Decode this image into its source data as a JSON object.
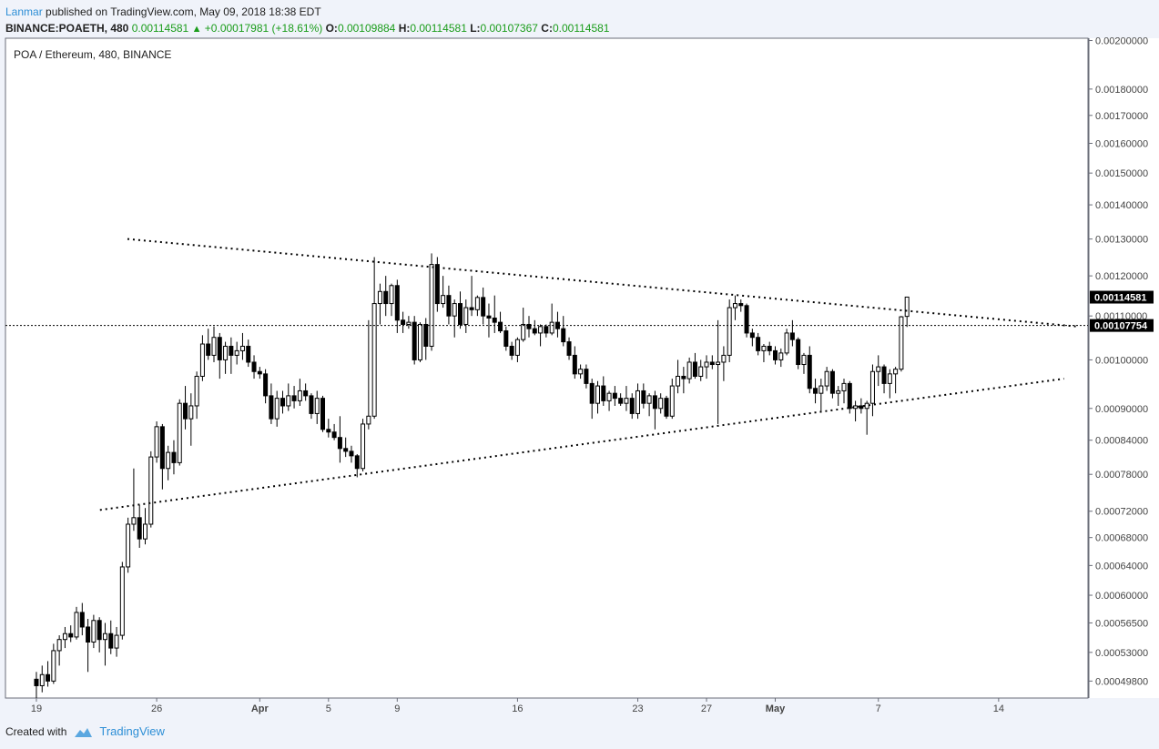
{
  "header": {
    "author": "Lanmar",
    "published_text": "published on TradingView.com, May 09, 2018 18:38 EDT",
    "symbol": "BINANCE:POAETH, 480",
    "last": "0.00114581",
    "change": "+0.00017981 (+18.61%)",
    "open_label": "O:",
    "open": "0.00109884",
    "high_label": "H:",
    "high": "0.00114581",
    "low_label": "L:",
    "low": "0.00107367",
    "close_label": "C:",
    "close": "0.00114581"
  },
  "footer": {
    "created_with": "Created with",
    "brand": "TradingView",
    "brand_icon": "tradingview-cloud-icon"
  },
  "colors": {
    "up_fill": "#ffffff",
    "down_fill": "#000000",
    "candle_border": "#000000",
    "price_badge_bg": "#000000",
    "accent_green": "#1a9c1a",
    "brand_blue": "#2e8fd6"
  },
  "chart_data": {
    "type": "candlestick",
    "title": "POA / Ethereum, 480, BINANCE",
    "y_scale": "log",
    "ylim": [
      0.00048,
      0.00201
    ],
    "y_ticks": [
      {
        "v": 0.002,
        "label": "0.00200000"
      },
      {
        "v": 0.0018,
        "label": "0.00180000"
      },
      {
        "v": 0.0017,
        "label": "0.00170000"
      },
      {
        "v": 0.0016,
        "label": "0.00160000"
      },
      {
        "v": 0.0015,
        "label": "0.00150000"
      },
      {
        "v": 0.0014,
        "label": "0.00140000"
      },
      {
        "v": 0.0013,
        "label": "0.00130000"
      },
      {
        "v": 0.0012,
        "label": "0.00120000"
      },
      {
        "v": 0.0011,
        "label": "0.00110000"
      },
      {
        "v": 0.001,
        "label": "0.00100000"
      },
      {
        "v": 0.0009,
        "label": "0.00090000"
      },
      {
        "v": 0.00084,
        "label": "0.00084000"
      },
      {
        "v": 0.00078,
        "label": "0.00078000"
      },
      {
        "v": 0.00072,
        "label": "0.00072000"
      },
      {
        "v": 0.00068,
        "label": "0.00068000"
      },
      {
        "v": 0.00064,
        "label": "0.00064000"
      },
      {
        "v": 0.0006,
        "label": "0.00060000"
      },
      {
        "v": 0.000565,
        "label": "0.00056500"
      },
      {
        "v": 0.00053,
        "label": "0.00053000"
      },
      {
        "v": 0.000498,
        "label": "0.00049800"
      }
    ],
    "x_ticks": [
      {
        "label": "19",
        "day": 0,
        "bold": false
      },
      {
        "label": "26",
        "day": 7,
        "bold": false
      },
      {
        "label": "Apr",
        "day": 13,
        "bold": true
      },
      {
        "label": "5",
        "day": 17,
        "bold": false
      },
      {
        "label": "9",
        "day": 21,
        "bold": false
      },
      {
        "label": "16",
        "day": 28,
        "bold": false
      },
      {
        "label": "23",
        "day": 35,
        "bold": false
      },
      {
        "label": "27",
        "day": 39,
        "bold": false
      },
      {
        "label": "May",
        "day": 43,
        "bold": true
      },
      {
        "label": "7",
        "day": 49,
        "bold": false
      },
      {
        "label": "14",
        "day": 56,
        "bold": false
      }
    ],
    "x_range_days": [
      -1.8,
      61.2
    ],
    "candles_per_day": 3,
    "candles": [
      [
        0.0005,
        0.000508,
        0.00048,
        0.000493
      ],
      [
        0.000493,
        0.000515,
        0.000486,
        0.000505
      ],
      [
        0.000505,
        0.00052,
        0.000492,
        0.000498
      ],
      [
        0.000498,
        0.00054,
        0.000495,
        0.000532
      ],
      [
        0.000532,
        0.00055,
        0.000515,
        0.000545
      ],
      [
        0.000545,
        0.00056,
        0.000535,
        0.000552
      ],
      [
        0.000552,
        0.000562,
        0.000542,
        0.000548
      ],
      [
        0.000548,
        0.000585,
        0.000545,
        0.000578
      ],
      [
        0.000578,
        0.00059,
        0.00055,
        0.00056
      ],
      [
        0.00056,
        0.00057,
        0.000508,
        0.000542
      ],
      [
        0.000542,
        0.000575,
        0.000535,
        0.000568
      ],
      [
        0.000568,
        0.000572,
        0.00053,
        0.000545
      ],
      [
        0.000545,
        0.000565,
        0.000515,
        0.000552
      ],
      [
        0.000552,
        0.000568,
        0.000528,
        0.000535
      ],
      [
        0.000535,
        0.00056,
        0.000525,
        0.00055
      ],
      [
        0.00055,
        0.000645,
        0.000545,
        0.000638
      ],
      [
        0.000638,
        0.00071,
        0.00063,
        0.0007
      ],
      [
        0.0007,
        0.00079,
        0.00069,
        0.00071
      ],
      [
        0.00071,
        0.00073,
        0.000665,
        0.000678
      ],
      [
        0.000678,
        0.000725,
        0.00067,
        0.0007
      ],
      [
        0.0007,
        0.00082,
        0.000695,
        0.00081
      ],
      [
        0.00081,
        0.000875,
        0.0008,
        0.000865
      ],
      [
        0.000865,
        0.00087,
        0.000755,
        0.00079
      ],
      [
        0.00079,
        0.00083,
        0.00077,
        0.000818
      ],
      [
        0.000818,
        0.00084,
        0.00078,
        0.0008
      ],
      [
        0.0008,
        0.000918,
        0.000795,
        0.00091
      ],
      [
        0.00091,
        0.000945,
        0.00086,
        0.00088
      ],
      [
        0.00088,
        0.00093,
        0.00083,
        0.000905
      ],
      [
        0.000905,
        0.000975,
        0.00088,
        0.000965
      ],
      [
        0.000965,
        0.001055,
        0.000955,
        0.001035
      ],
      [
        0.001035,
        0.00107,
        0.001,
        0.00101
      ],
      [
        0.00101,
        0.001075,
        0.000995,
        0.00105
      ],
      [
        0.00105,
        0.00106,
        0.00096,
        0.001
      ],
      [
        0.001,
        0.00104,
        0.00097,
        0.00103
      ],
      [
        0.00103,
        0.00105,
        0.00097,
        0.00101
      ],
      [
        0.00101,
        0.00104,
        0.00099,
        0.00102
      ],
      [
        0.00102,
        0.00106,
        0.001,
        0.00103
      ],
      [
        0.00103,
        0.001045,
        0.000985,
        0.000995
      ],
      [
        0.000995,
        0.00101,
        0.00096,
        0.000975
      ],
      [
        0.000975,
        0.000985,
        0.00096,
        0.00097
      ],
      [
        0.00097,
        0.00098,
        0.00091,
        0.000925
      ],
      [
        0.000925,
        0.00095,
        0.00087,
        0.00088
      ],
      [
        0.00088,
        0.000935,
        0.000865,
        0.00092
      ],
      [
        0.00092,
        0.000935,
        0.00089,
        0.000905
      ],
      [
        0.000905,
        0.00095,
        0.000895,
        0.000925
      ],
      [
        0.000925,
        0.000945,
        0.0009,
        0.000915
      ],
      [
        0.000915,
        0.00096,
        0.000905,
        0.000935
      ],
      [
        0.000935,
        0.00095,
        0.000915,
        0.000925
      ],
      [
        0.000925,
        0.00093,
        0.00088,
        0.00089
      ],
      [
        0.00089,
        0.000935,
        0.00087,
        0.00092
      ],
      [
        0.00092,
        0.000925,
        0.000855,
        0.00086
      ],
      [
        0.00086,
        0.00088,
        0.000845,
        0.000855
      ],
      [
        0.000855,
        0.00087,
        0.00084,
        0.000845
      ],
      [
        0.000845,
        0.000885,
        0.0008,
        0.000825
      ],
      [
        0.000825,
        0.000845,
        0.00081,
        0.00082
      ],
      [
        0.00082,
        0.00083,
        0.0008,
        0.000812
      ],
      [
        0.000812,
        0.000815,
        0.000775,
        0.00079
      ],
      [
        0.00079,
        0.00088,
        0.000785,
        0.00087
      ],
      [
        0.00087,
        0.00109,
        0.00086,
        0.000885
      ],
      [
        0.000885,
        0.00125,
        0.00088,
        0.00113
      ],
      [
        0.00113,
        0.00118,
        0.00108,
        0.00116
      ],
      [
        0.00116,
        0.0012,
        0.0011,
        0.00113
      ],
      [
        0.00113,
        0.00118,
        0.0011,
        0.001175
      ],
      [
        0.001175,
        0.00119,
        0.00106,
        0.00109
      ],
      [
        0.00109,
        0.00111,
        0.00106,
        0.00108
      ],
      [
        0.00108,
        0.0011,
        0.00107,
        0.001085
      ],
      [
        0.001085,
        0.0011,
        0.00099,
        0.001
      ],
      [
        0.001,
        0.001085,
        0.000995,
        0.00108
      ],
      [
        0.00108,
        0.001095,
        0.001,
        0.00103
      ],
      [
        0.00103,
        0.00126,
        0.00102,
        0.00123
      ],
      [
        0.00123,
        0.00125,
        0.00111,
        0.00113
      ],
      [
        0.00113,
        0.0012,
        0.00112,
        0.00115
      ],
      [
        0.00115,
        0.001175,
        0.00108,
        0.0011
      ],
      [
        0.0011,
        0.00114,
        0.00105,
        0.00113
      ],
      [
        0.00113,
        0.00116,
        0.00107,
        0.00108
      ],
      [
        0.00108,
        0.00114,
        0.00106,
        0.00112
      ],
      [
        0.00112,
        0.0012,
        0.0011,
        0.001115
      ],
      [
        0.001115,
        0.00115,
        0.0011,
        0.001145
      ],
      [
        0.001145,
        0.00117,
        0.00108,
        0.0011
      ],
      [
        0.0011,
        0.00113,
        0.00105,
        0.001095
      ],
      [
        0.001095,
        0.00115,
        0.00106,
        0.001085
      ],
      [
        0.001085,
        0.00111,
        0.00106,
        0.001065
      ],
      [
        0.001065,
        0.001075,
        0.00102,
        0.00103
      ],
      [
        0.00103,
        0.00104,
        0.001,
        0.00101
      ],
      [
        0.00101,
        0.00105,
        0.000995,
        0.001045
      ],
      [
        0.001045,
        0.00112,
        0.00104,
        0.00108
      ],
      [
        0.00108,
        0.0011,
        0.00105,
        0.00107
      ],
      [
        0.00107,
        0.00109,
        0.001055,
        0.00106
      ],
      [
        0.00106,
        0.00108,
        0.00103,
        0.001075
      ],
      [
        0.001075,
        0.00108,
        0.00105,
        0.00106
      ],
      [
        0.00106,
        0.00113,
        0.001055,
        0.001085
      ],
      [
        0.001085,
        0.00111,
        0.00105,
        0.00107
      ],
      [
        0.00107,
        0.0011,
        0.00103,
        0.00104
      ],
      [
        0.00104,
        0.00105,
        0.001,
        0.00101
      ],
      [
        0.00101,
        0.00103,
        0.00096,
        0.00097
      ],
      [
        0.00097,
        0.00099,
        0.00096,
        0.00098
      ],
      [
        0.00098,
        0.00099,
        0.00094,
        0.00095
      ],
      [
        0.00095,
        0.00096,
        0.00088,
        0.00091
      ],
      [
        0.00091,
        0.000955,
        0.00089,
        0.000945
      ],
      [
        0.000945,
        0.000965,
        0.000905,
        0.000915
      ],
      [
        0.000915,
        0.000935,
        0.000895,
        0.00093
      ],
      [
        0.00093,
        0.000945,
        0.000905,
        0.00092
      ],
      [
        0.00092,
        0.00093,
        0.000905,
        0.00091
      ],
      [
        0.00091,
        0.000945,
        0.000895,
        0.00092
      ],
      [
        0.00092,
        0.00093,
        0.00088,
        0.00089
      ],
      [
        0.00089,
        0.00095,
        0.00088,
        0.000935
      ],
      [
        0.000935,
        0.00095,
        0.0009,
        0.00091
      ],
      [
        0.00091,
        0.00093,
        0.000885,
        0.000925
      ],
      [
        0.000925,
        0.000935,
        0.00086,
        0.0009
      ],
      [
        0.0009,
        0.00093,
        0.00089,
        0.00092
      ],
      [
        0.00092,
        0.000925,
        0.00088,
        0.000885
      ],
      [
        0.000885,
        0.00096,
        0.00088,
        0.000945
      ],
      [
        0.000945,
        0.001,
        0.00093,
        0.000965
      ],
      [
        0.000965,
        0.000985,
        0.00093,
        0.00096
      ],
      [
        0.00096,
        0.001005,
        0.00095,
        0.000995
      ],
      [
        0.000995,
        0.001015,
        0.00096,
        0.000965
      ],
      [
        0.000965,
        0.001,
        0.000955,
        0.000985
      ],
      [
        0.000985,
        0.00101,
        0.00096,
        0.000995
      ],
      [
        0.000995,
        0.00101,
        0.00098,
        0.00099
      ],
      [
        0.00099,
        0.00109,
        0.00087,
        0.000995
      ],
      [
        0.000995,
        0.00103,
        0.000955,
        0.00101
      ],
      [
        0.00101,
        0.00114,
        0.000995,
        0.00112
      ],
      [
        0.00112,
        0.00115,
        0.00109,
        0.00113
      ],
      [
        0.00113,
        0.00114,
        0.00111,
        0.001125
      ],
      [
        0.001125,
        0.00113,
        0.00105,
        0.00106
      ],
      [
        0.00106,
        0.00107,
        0.00103,
        0.00105
      ],
      [
        0.00105,
        0.00106,
        0.00101,
        0.00102
      ],
      [
        0.00102,
        0.001035,
        0.000995,
        0.00103
      ],
      [
        0.00103,
        0.00104,
        0.00101,
        0.00102
      ],
      [
        0.00102,
        0.00103,
        0.00099,
        0.001
      ],
      [
        0.001,
        0.001025,
        0.000985,
        0.001015
      ],
      [
        0.001015,
        0.00107,
        0.00101,
        0.00106
      ],
      [
        0.00106,
        0.00109,
        0.00103,
        0.001045
      ],
      [
        0.001045,
        0.00105,
        0.00098,
        0.00099
      ],
      [
        0.00099,
        0.001015,
        0.00097,
        0.00101
      ],
      [
        0.00101,
        0.00103,
        0.00093,
        0.00094
      ],
      [
        0.00094,
        0.00096,
        0.00091,
        0.00093
      ],
      [
        0.00093,
        0.00096,
        0.000895,
        0.000945
      ],
      [
        0.000945,
        0.000985,
        0.000935,
        0.000975
      ],
      [
        0.000975,
        0.00098,
        0.00092,
        0.00093
      ],
      [
        0.00093,
        0.000945,
        0.000905,
        0.000935
      ],
      [
        0.000935,
        0.00096,
        0.00091,
        0.00095
      ],
      [
        0.00095,
        0.000955,
        0.00089,
        0.0009
      ],
      [
        0.0009,
        0.000915,
        0.000875,
        0.000905
      ],
      [
        0.000905,
        0.00092,
        0.00089,
        0.0009
      ],
      [
        0.0009,
        0.000915,
        0.00085,
        0.00091
      ],
      [
        0.00091,
        0.00099,
        0.000885,
        0.000975
      ],
      [
        0.000975,
        0.00101,
        0.000945,
        0.000985
      ],
      [
        0.000985,
        0.00099,
        0.00093,
        0.00095
      ],
      [
        0.00095,
        0.00098,
        0.00092,
        0.00097
      ],
      [
        0.00097,
        0.000985,
        0.00093,
        0.00098
      ],
      [
        0.00098,
        0.0011,
        0.000975,
        0.001098
      ],
      [
        0.001099,
        0.001146,
        0.001074,
        0.001146
      ]
    ],
    "horizontal_line": {
      "price": 0.00107754,
      "label": "0.00107754"
    },
    "last_price": {
      "price": 0.00114581,
      "label": "0.00114581"
    },
    "trendlines": [
      {
        "name": "upper-trendline",
        "from": [
          5.3,
          0.0013
        ],
        "to": [
          60.6,
          0.001075
        ]
      },
      {
        "name": "lower-trendline",
        "from": [
          3.7,
          0.000722
        ],
        "to": [
          59.8,
          0.00096
        ]
      }
    ]
  }
}
